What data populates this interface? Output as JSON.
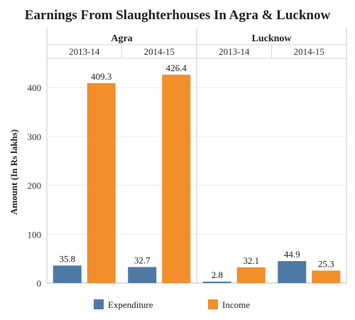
{
  "chart_data": {
    "type": "bar",
    "title": "Earnings From Slaughterhouses In Agra & Lucknow",
    "ylabel": "Amount (In Rs lakhs)",
    "ylim": [
      0,
      460
    ],
    "yticks": [
      0,
      100,
      200,
      300,
      400
    ],
    "groups": [
      {
        "name": "Agra",
        "years": [
          "2013-14",
          "2014-15"
        ]
      },
      {
        "name": "Lucknow",
        "years": [
          "2013-14",
          "2014-15"
        ]
      }
    ],
    "series": [
      {
        "name": "Expenditure",
        "color": "#4e79a7",
        "values": [
          35.8,
          32.7,
          2.8,
          44.9
        ],
        "labels": [
          "35.8",
          "32.7",
          "2.8",
          "44.9"
        ]
      },
      {
        "name": "Income",
        "color": "#f28e2b",
        "values": [
          409.3,
          426.4,
          32.1,
          25.3
        ],
        "labels": [
          "409.3",
          "426.4",
          "32.1",
          "25.3"
        ]
      }
    ],
    "grid": true,
    "legend": "bottom"
  }
}
